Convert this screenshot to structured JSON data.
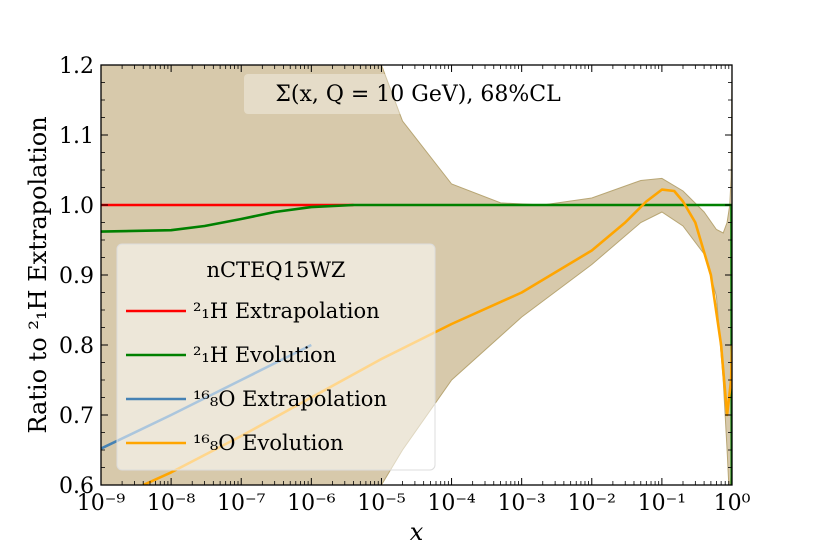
{
  "chart_data": {
    "type": "line",
    "title": "Σ(x, Q = 10 GeV),  68%CL",
    "xlabel": "x",
    "ylabel": "Ratio to ²₁H Extrapolation",
    "xscale": "log",
    "xlim": [
      1e-09,
      1
    ],
    "ylim": [
      0.6,
      1.2
    ],
    "x_ticks": [
      {
        "value": 1e-09,
        "label": "10⁻⁹"
      },
      {
        "value": 1e-08,
        "label": "10⁻⁸"
      },
      {
        "value": 1e-07,
        "label": "10⁻⁷"
      },
      {
        "value": 1e-06,
        "label": "10⁻⁶"
      },
      {
        "value": 1e-05,
        "label": "10⁻⁵"
      },
      {
        "value": 0.0001,
        "label": "10⁻⁴"
      },
      {
        "value": 0.001,
        "label": "10⁻³"
      },
      {
        "value": 0.01,
        "label": "10⁻²"
      },
      {
        "value": 0.1,
        "label": "10⁻¹"
      },
      {
        "value": 1,
        "label": "10⁰"
      }
    ],
    "y_ticks": [
      {
        "value": 0.6,
        "label": "0.6"
      },
      {
        "value": 0.7,
        "label": "0.7"
      },
      {
        "value": 0.8,
        "label": "0.8"
      },
      {
        "value": 0.9,
        "label": "0.9"
      },
      {
        "value": 1.0,
        "label": "1.0"
      },
      {
        "value": 1.1,
        "label": "1.1"
      },
      {
        "value": 1.2,
        "label": "1.2"
      }
    ],
    "legend": {
      "title": "nCTEQ15WZ",
      "placement": "lower-left",
      "entries": [
        "²₁H Extrapolation",
        "²₁H Evolution",
        "¹⁶₈O Extrapolation",
        "¹⁶₈O Evolution"
      ]
    },
    "band": {
      "name": "¹⁶₈O Evolution 68%CL",
      "color": "#c9b78f",
      "upper": [
        [
          1e-09,
          1.2
        ],
        [
          1e-05,
          1.2
        ],
        [
          2e-05,
          1.12
        ],
        [
          0.0001,
          1.03
        ],
        [
          0.0005,
          1.003
        ],
        [
          0.002,
          1.0
        ],
        [
          0.01,
          1.01
        ],
        [
          0.05,
          1.035
        ],
        [
          0.1,
          1.038
        ],
        [
          0.2,
          1.02
        ],
        [
          0.4,
          0.99
        ],
        [
          0.6,
          0.965
        ],
        [
          0.75,
          0.96
        ],
        [
          0.85,
          0.975
        ],
        [
          0.93,
          1.0
        ],
        [
          0.97,
          1.04
        ],
        [
          1.0,
          1.2
        ]
      ],
      "lower": [
        [
          1e-09,
          0.6
        ],
        [
          1e-05,
          0.6
        ],
        [
          2e-05,
          0.65
        ],
        [
          0.0001,
          0.75
        ],
        [
          0.001,
          0.84
        ],
        [
          0.01,
          0.915
        ],
        [
          0.05,
          0.975
        ],
        [
          0.1,
          0.99
        ],
        [
          0.2,
          0.97
        ],
        [
          0.4,
          0.93
        ],
        [
          0.6,
          0.87
        ],
        [
          0.75,
          0.75
        ],
        [
          0.85,
          0.65
        ],
        [
          0.9,
          0.6
        ],
        [
          0.95,
          0.6
        ],
        [
          0.98,
          0.62
        ],
        [
          1.0,
          0.62
        ]
      ]
    },
    "series": [
      {
        "name": "²₁H Extrapolation",
        "color": "#ff0000",
        "points": [
          [
            1e-09,
            1.0
          ],
          [
            1e-06,
            1.0
          ],
          [
            4e-06,
            1.0
          ]
        ]
      },
      {
        "name": "²₁H Evolution",
        "color": "#008000",
        "points": [
          [
            1e-09,
            0.962
          ],
          [
            1e-08,
            0.964
          ],
          [
            3e-08,
            0.97
          ],
          [
            1e-07,
            0.98
          ],
          [
            3e-07,
            0.99
          ],
          [
            1e-06,
            0.997
          ],
          [
            4e-06,
            1.0
          ],
          [
            0.1,
            1.0
          ],
          [
            0.97,
            1.0
          ],
          [
            0.985,
            1.0
          ],
          [
            0.995,
            0.6
          ]
        ]
      },
      {
        "name": "¹⁶₈O Extrapolation",
        "color": "#4682b4",
        "points": [
          [
            1e-09,
            0.652
          ],
          [
            1e-08,
            0.7
          ],
          [
            1e-07,
            0.75
          ],
          [
            1e-06,
            0.8
          ]
        ]
      },
      {
        "name": "¹⁶₈O Evolution",
        "color": "#ffa500",
        "points": [
          [
            4e-09,
            0.6
          ],
          [
            1e-08,
            0.618
          ],
          [
            1e-07,
            0.67
          ],
          [
            1e-06,
            0.725
          ],
          [
            1e-05,
            0.78
          ],
          [
            0.0001,
            0.83
          ],
          [
            0.001,
            0.875
          ],
          [
            0.01,
            0.935
          ],
          [
            0.03,
            0.975
          ],
          [
            0.06,
            1.005
          ],
          [
            0.1,
            1.022
          ],
          [
            0.15,
            1.02
          ],
          [
            0.2,
            1.005
          ],
          [
            0.3,
            0.975
          ],
          [
            0.5,
            0.9
          ],
          [
            0.7,
            0.8
          ],
          [
            0.85,
            0.7
          ],
          [
            0.97,
            0.75
          ],
          [
            1.0,
            0.8
          ]
        ]
      }
    ]
  }
}
